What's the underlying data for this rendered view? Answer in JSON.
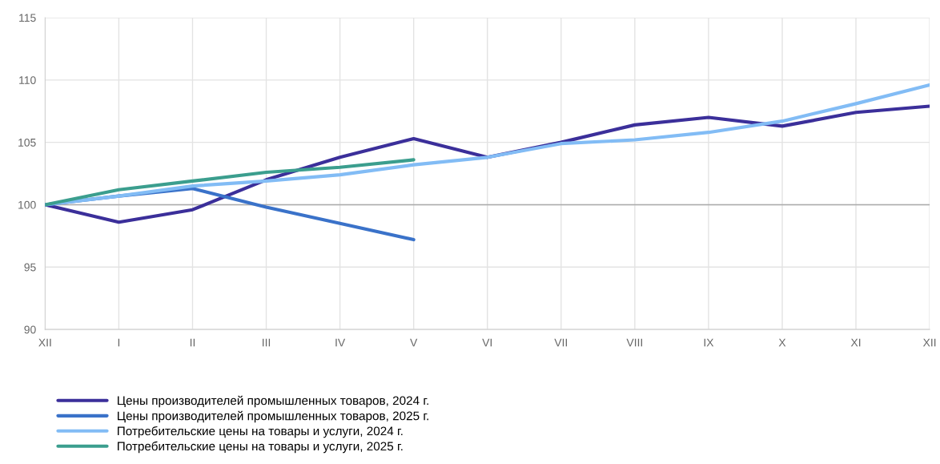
{
  "chart_data": {
    "type": "line",
    "categories": [
      "XII",
      "I",
      "II",
      "III",
      "IV",
      "V",
      "VI",
      "VII",
      "VIII",
      "IX",
      "X",
      "XI",
      "XII"
    ],
    "series": [
      {
        "name": "Цены производителей промышленных товаров, 2024 г.",
        "color": "#3b2f9a",
        "values": [
          100,
          98.6,
          99.6,
          102.0,
          103.8,
          105.3,
          103.8,
          105.0,
          106.4,
          107.0,
          106.3,
          107.4,
          107.9
        ]
      },
      {
        "name": "Цены производителей промышленных товаров, 2025 г.",
        "color": "#3a72c9",
        "values": [
          100,
          100.7,
          101.3,
          99.8,
          98.5,
          97.2,
          null,
          null,
          null,
          null,
          null,
          null,
          null
        ]
      },
      {
        "name": "Потребительские цены на товары и услуги, 2024 г.",
        "color": "#82bcf5",
        "values": [
          100,
          100.7,
          101.5,
          101.9,
          102.4,
          103.2,
          103.8,
          104.9,
          105.2,
          105.8,
          106.7,
          108.1,
          109.6
        ]
      },
      {
        "name": "Потребительские цены на товары и услуги, 2025 г.",
        "color": "#3b9e8e",
        "values": [
          100,
          101.2,
          101.9,
          102.6,
          103.0,
          103.6,
          null,
          null,
          null,
          null,
          null,
          null,
          null
        ]
      }
    ],
    "ylim": [
      90,
      115
    ],
    "yticks": [
      90,
      95,
      100,
      105,
      110,
      115
    ],
    "grid": true,
    "legend": "bottom left",
    "marker": "none",
    "line_style": "solid",
    "ref_lines": [
      {
        "axis": "y",
        "value": 100,
        "color": "#aaaaaa"
      }
    ]
  }
}
